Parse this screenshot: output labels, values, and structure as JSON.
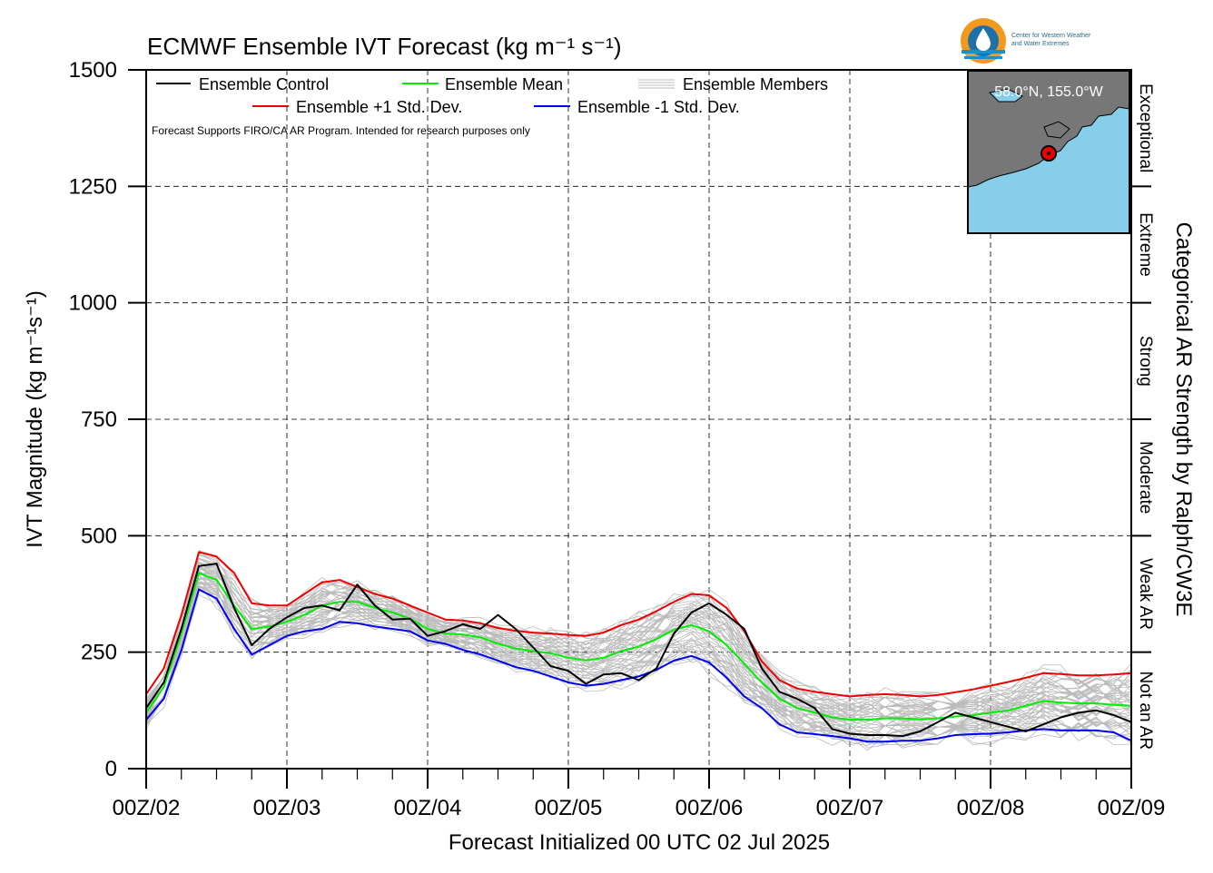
{
  "title": "ECMWF Ensemble IVT Forecast (kg m⁻¹ s⁻¹)",
  "ylabel": "IVT Magnitude (kg m⁻¹s⁻¹)",
  "xlabel": "Forecast Initialized 00 UTC 02 Jul 2025",
  "right_label": "Categorical AR Strength by Ralph/CW3E",
  "disclaimer": "Forecast Supports FIRO/CA AR Program. Intended for research purposes only",
  "location_label": "58.0°N, 155.0°W",
  "logo": {
    "line1": "Center for Western Weather",
    "line2": "and Water Extremes",
    "colors": {
      "ring": "#f39a1e",
      "inner": "#1f6fa8",
      "wave": "#1b8fc7"
    }
  },
  "legend": {
    "control": "Ensemble Control",
    "mean": "Ensemble Mean",
    "members": "Ensemble Members",
    "plus_sd": "Ensemble +1 Std. Dev.",
    "minus_sd": "Ensemble -1 Std. Dev."
  },
  "categories": [
    {
      "label": "Not an AR",
      "from": 0,
      "to": 250
    },
    {
      "label": "Weak AR",
      "from": 250,
      "to": 500
    },
    {
      "label": "Moderate",
      "from": 500,
      "to": 750
    },
    {
      "label": "Strong",
      "from": 750,
      "to": 1000
    },
    {
      "label": "Extreme",
      "from": 1000,
      "to": 1250
    },
    {
      "label": "Exceptional",
      "from": 1250,
      "to": 1500
    }
  ],
  "colors": {
    "control": "#000000",
    "mean": "#00ee00",
    "plus_sd": "#ee0000",
    "minus_sd": "#0000ee",
    "members": "#bbbbbb",
    "map_water": "#87ceeb",
    "map_land": "#777777",
    "marker": "#ee0000"
  },
  "chart_data": {
    "type": "line",
    "title": "ECMWF Ensemble IVT Forecast (kg m⁻¹ s⁻¹)",
    "xlabel": "Forecast Initialized 00 UTC 02 Jul 2025",
    "ylabel": "IVT Magnitude (kg m⁻¹s⁻¹)",
    "x_unit": "forecast hour",
    "xlim": [
      0,
      168
    ],
    "ylim": [
      0,
      1500
    ],
    "yticks": [
      0,
      250,
      500,
      750,
      1000,
      1250,
      1500
    ],
    "xtick_labels": [
      "00Z/02",
      "00Z/03",
      "00Z/04",
      "00Z/05",
      "00Z/06",
      "00Z/07",
      "00Z/08",
      "00Z/09"
    ],
    "grid": true,
    "legend_position": "top-left",
    "series": [
      {
        "name": "Ensemble Control",
        "x": [
          0,
          3,
          6,
          9,
          12,
          15,
          18,
          21,
          24,
          27,
          30,
          33,
          36,
          39,
          42,
          45,
          48,
          51,
          54,
          57,
          60,
          63,
          66,
          69,
          72,
          75,
          78,
          81,
          84,
          87,
          90,
          93,
          96,
          99,
          102,
          105,
          108,
          111,
          114,
          117,
          120,
          123,
          126,
          129,
          132,
          135,
          138,
          141,
          144,
          147,
          150,
          153,
          156,
          159,
          162,
          165,
          168
        ],
        "y": [
          130,
          185,
          300,
          435,
          440,
          345,
          265,
          300,
          325,
          345,
          350,
          340,
          395,
          350,
          320,
          322,
          285,
          295,
          310,
          300,
          330,
          300,
          260,
          220,
          210,
          182,
          202,
          205,
          190,
          215,
          290,
          335,
          355,
          330,
          300,
          215,
          165,
          150,
          130,
          85,
          75,
          72,
          72,
          70,
          80,
          100,
          120,
          110,
          100,
          90,
          80,
          95,
          110,
          120,
          125,
          115,
          100
        ]
      },
      {
        "name": "Ensemble Mean",
        "x": [
          0,
          3,
          6,
          9,
          12,
          15,
          18,
          21,
          24,
          27,
          30,
          33,
          36,
          39,
          42,
          45,
          48,
          51,
          54,
          57,
          60,
          63,
          66,
          69,
          72,
          75,
          78,
          81,
          84,
          87,
          90,
          93,
          96,
          99,
          102,
          105,
          108,
          111,
          114,
          117,
          120,
          123,
          126,
          129,
          132,
          135,
          138,
          141,
          144,
          147,
          150,
          153,
          156,
          159,
          162,
          165,
          168
        ],
        "y": [
          120,
          175,
          290,
          420,
          405,
          350,
          300,
          305,
          315,
          330,
          350,
          358,
          358,
          345,
          335,
          322,
          300,
          290,
          288,
          282,
          268,
          258,
          252,
          248,
          238,
          232,
          238,
          252,
          262,
          278,
          298,
          308,
          295,
          265,
          225,
          185,
          150,
          130,
          120,
          110,
          105,
          105,
          108,
          108,
          106,
          108,
          112,
          115,
          120,
          125,
          135,
          145,
          142,
          140,
          140,
          137,
          135
        ]
      },
      {
        "name": "Ensemble +1 Std. Dev.",
        "x": [
          0,
          3,
          6,
          9,
          12,
          15,
          18,
          21,
          24,
          27,
          30,
          33,
          36,
          39,
          42,
          45,
          48,
          51,
          54,
          57,
          60,
          63,
          66,
          69,
          72,
          75,
          78,
          81,
          84,
          87,
          90,
          93,
          96,
          99,
          102,
          105,
          108,
          111,
          114,
          117,
          120,
          123,
          126,
          129,
          132,
          135,
          138,
          141,
          144,
          147,
          150,
          153,
          156,
          159,
          162,
          165,
          168
        ],
        "y": [
          160,
          215,
          330,
          465,
          455,
          420,
          355,
          350,
          350,
          375,
          400,
          405,
          390,
          375,
          365,
          350,
          335,
          320,
          318,
          312,
          302,
          296,
          292,
          290,
          287,
          285,
          292,
          308,
          320,
          338,
          358,
          375,
          372,
          345,
          295,
          230,
          190,
          172,
          165,
          160,
          155,
          158,
          160,
          158,
          155,
          158,
          164,
          170,
          178,
          186,
          195,
          205,
          203,
          200,
          200,
          202,
          205
        ]
      },
      {
        "name": "Ensemble -1 Std. Dev.",
        "x": [
          0,
          3,
          6,
          9,
          12,
          15,
          18,
          21,
          24,
          27,
          30,
          33,
          36,
          39,
          42,
          45,
          48,
          51,
          54,
          57,
          60,
          63,
          66,
          69,
          72,
          75,
          78,
          81,
          84,
          87,
          90,
          93,
          96,
          99,
          102,
          105,
          108,
          111,
          114,
          117,
          120,
          123,
          126,
          129,
          132,
          135,
          138,
          141,
          144,
          147,
          150,
          153,
          156,
          159,
          162,
          165,
          168
        ],
        "y": [
          105,
          150,
          255,
          385,
          365,
          300,
          245,
          265,
          285,
          295,
          300,
          315,
          312,
          305,
          300,
          295,
          275,
          268,
          255,
          245,
          232,
          218,
          210,
          198,
          185,
          178,
          182,
          190,
          198,
          212,
          232,
          242,
          228,
          195,
          155,
          130,
          95,
          78,
          74,
          70,
          65,
          58,
          58,
          60,
          60,
          65,
          72,
          74,
          75,
          78,
          82,
          85,
          82,
          82,
          82,
          78,
          60
        ]
      }
    ],
    "members_count": 50,
    "members_range_note": ""
  }
}
